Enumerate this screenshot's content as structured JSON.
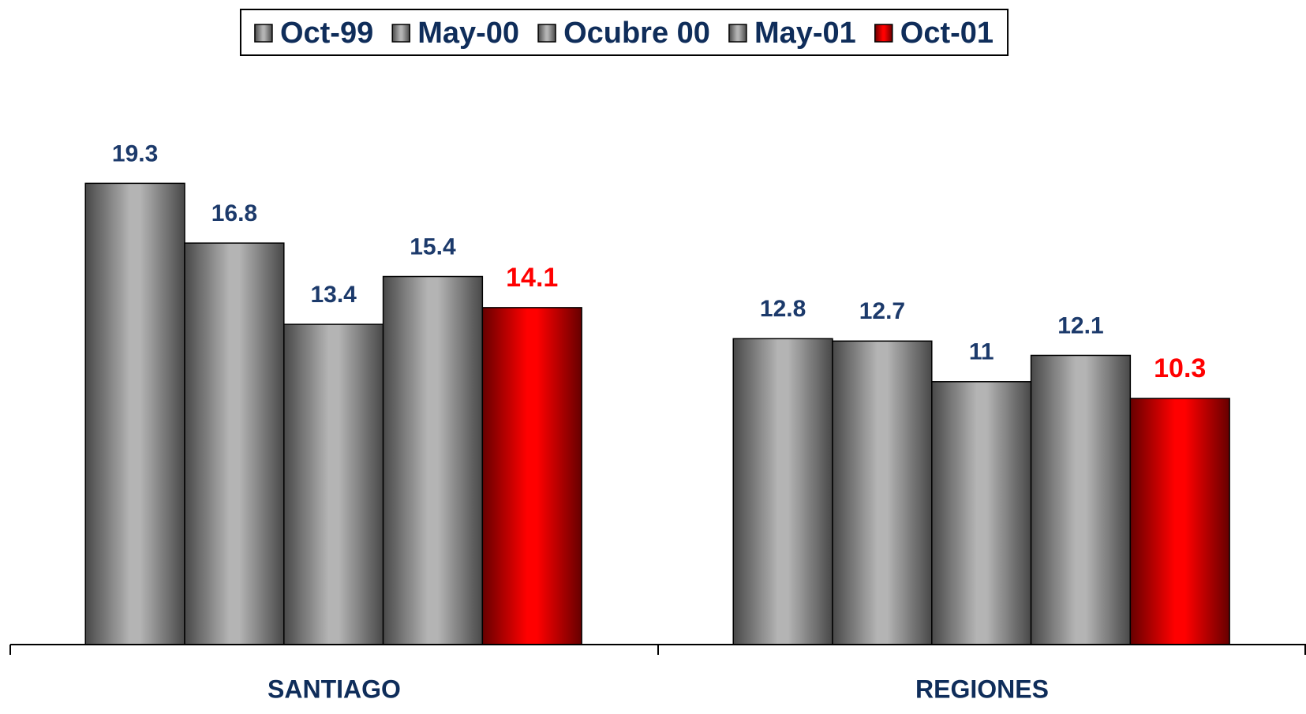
{
  "chart_data": {
    "type": "bar",
    "categories": [
      "SANTIAGO",
      "REGIONES"
    ],
    "series": [
      {
        "name": "Oct-99",
        "color": "#b4b4b4",
        "label_color": "#1c3a6b",
        "values": [
          19.3,
          12.8
        ]
      },
      {
        "name": "May-00",
        "color": "#b4b4b4",
        "label_color": "#1c3a6b",
        "values": [
          16.8,
          12.7
        ]
      },
      {
        "name": "Ocubre 00",
        "color": "#b4b4b4",
        "label_color": "#1c3a6b",
        "values": [
          13.4,
          11
        ]
      },
      {
        "name": "May-01",
        "color": "#b4b4b4",
        "label_color": "#1c3a6b",
        "values": [
          15.4,
          12.1
        ]
      },
      {
        "name": "Oct-01",
        "color": "#ff0000",
        "label_color": "#ff0000",
        "values": [
          14.1,
          10.3
        ]
      }
    ],
    "ylim": [
      0,
      24
    ],
    "legend": "top"
  }
}
